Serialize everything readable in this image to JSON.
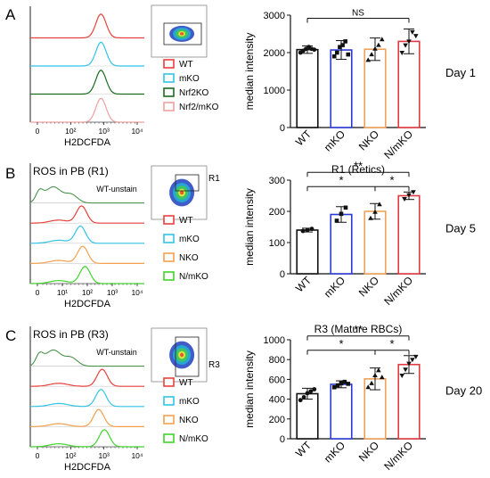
{
  "panels": [
    {
      "letter": "A",
      "hist_title": "",
      "unstain_label": "",
      "hist_xlabel": "H2DCFDA",
      "hist_ticks": [
        "0",
        "10²",
        "10³",
        "10⁴"
      ],
      "gate_label": "",
      "legend": [
        {
          "label": "WT",
          "color": "#e8413c"
        },
        {
          "label": "mKO",
          "color": "#32c3e6"
        },
        {
          "label": "Nrf2KO",
          "color": "#1a6b21"
        },
        {
          "label": "Nrf2/mKO",
          "color": "#eea0a0"
        }
      ],
      "day": "Day 1",
      "chart_data": {
        "type": "bar",
        "title": "",
        "ylabel": "median intensity",
        "categories": [
          "WT",
          "mKO",
          "NKO",
          "N/mKO"
        ],
        "values": [
          2080,
          2070,
          2090,
          2300
        ],
        "errors": [
          100,
          250,
          300,
          330
        ],
        "points": [
          [
            2000,
            2050,
            2100,
            2150,
            2100,
            2080
          ],
          [
            1900,
            2000,
            2150,
            2200,
            2300,
            1950
          ],
          [
            1800,
            1950,
            2100,
            2200,
            2350
          ],
          [
            2000,
            2200,
            2300,
            2550,
            2450
          ]
        ],
        "bar_colors": [
          "#111111",
          "#2a3ad6",
          "#f0a25a",
          "#e2383f"
        ],
        "ylim": [
          0,
          3000
        ],
        "yticks": [
          0,
          1000,
          2000,
          3000
        ],
        "significance": [
          {
            "from": 0,
            "to": 3,
            "label": "NS"
          }
        ],
        "grid": false
      }
    },
    {
      "letter": "B",
      "hist_title": "ROS in PB (R1)",
      "unstain_label": "WT-unstain",
      "hist_xlabel": "H2DCFDA",
      "hist_ticks": [
        "0",
        "10¹",
        "10²",
        "10³",
        "10⁴"
      ],
      "gate_label": "R1",
      "legend": [
        {
          "label": "WT",
          "color": "#e8413c"
        },
        {
          "label": "mKO",
          "color": "#32c3e6"
        },
        {
          "label": "NKO",
          "color": "#f3a04e"
        },
        {
          "label": "N/mKO",
          "color": "#3fd52a"
        }
      ],
      "day": "Day 5",
      "chart_data": {
        "type": "bar",
        "title": "R1 (Retics)",
        "ylabel": "median intensity",
        "categories": [
          "WT",
          "mKO",
          "NKO",
          "N/mKO"
        ],
        "values": [
          140,
          190,
          200,
          250
        ],
        "errors": [
          6,
          25,
          25,
          12
        ],
        "points": [
          [
            137,
            140,
            144
          ],
          [
            170,
            192,
            212
          ],
          [
            178,
            198,
            222
          ],
          [
            240,
            252,
            262
          ]
        ],
        "bar_colors": [
          "#111111",
          "#2a3ad6",
          "#f0a25a",
          "#e2383f"
        ],
        "ylim": [
          0,
          300
        ],
        "yticks": [
          0,
          100,
          200,
          300
        ],
        "significance": [
          {
            "from": 0,
            "to": 2,
            "label": "*",
            "level": 1
          },
          {
            "from": 2,
            "to": 3,
            "label": "*",
            "level": 1
          },
          {
            "from": 0,
            "to": 3,
            "label": "**",
            "level": 2
          }
        ],
        "grid": false
      }
    },
    {
      "letter": "C",
      "hist_title": "ROS in PB (R3)",
      "unstain_label": "WT-unstain",
      "hist_xlabel": "H2DCFDA",
      "hist_ticks": [
        "0",
        "10²",
        "10³",
        "10⁴"
      ],
      "gate_label": "R3",
      "legend": [
        {
          "label": "WT",
          "color": "#e8413c"
        },
        {
          "label": "mKO",
          "color": "#32c3e6"
        },
        {
          "label": "NKO",
          "color": "#f3a04e"
        },
        {
          "label": "N/mKO",
          "color": "#3fd52a"
        }
      ],
      "day": "Day 20",
      "chart_data": {
        "type": "bar",
        "title": "R3 (Mature RBCs)",
        "ylabel": "median intensity",
        "categories": [
          "WT",
          "mKO",
          "NKO",
          "N/mKO"
        ],
        "values": [
          455,
          550,
          605,
          750
        ],
        "errors": [
          55,
          35,
          110,
          90
        ],
        "points": [
          [
            390,
            420,
            460,
            480,
            500
          ],
          [
            520,
            540,
            560,
            575,
            555
          ],
          [
            520,
            560,
            640,
            690,
            620
          ],
          [
            640,
            700,
            760,
            800,
            830
          ]
        ],
        "bar_colors": [
          "#111111",
          "#2a3ad6",
          "#f0a25a",
          "#e2383f"
        ],
        "ylim": [
          0,
          1000
        ],
        "yticks": [
          0,
          200,
          400,
          600,
          800,
          1000
        ],
        "significance": [
          {
            "from": 0,
            "to": 2,
            "label": "*",
            "level": 1
          },
          {
            "from": 2,
            "to": 3,
            "label": "*",
            "level": 1
          },
          {
            "from": 0,
            "to": 3,
            "label": "**",
            "level": 2
          }
        ],
        "grid": false
      }
    }
  ]
}
